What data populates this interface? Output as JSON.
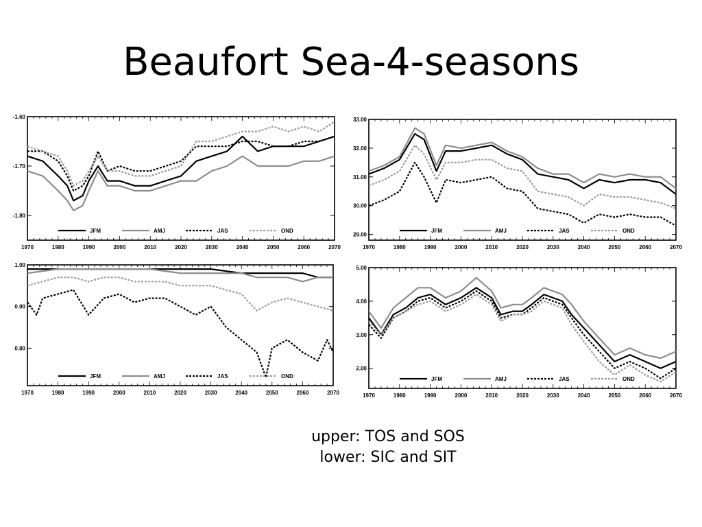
{
  "title": "Beaufort Sea-4-seasons",
  "caption": {
    "line1": "upper: TOS and SOS",
    "line2": "lower: SIC and SIT"
  },
  "series_styles": {
    "JFM": {
      "color": "#000000",
      "dash": ""
    },
    "AMJ": {
      "color": "#8c8c8c",
      "dash": ""
    },
    "JAS": {
      "color": "#000000",
      "dash": "3,2"
    },
    "OND": {
      "color": "#9a9a9a",
      "dash": "3,2"
    }
  },
  "chart_data": [
    {
      "type": "line",
      "xlim": [
        1970,
        2070
      ],
      "ylim": [
        -1.85,
        -1.6
      ],
      "yticks": [
        -1.6,
        -1.7,
        -1.8
      ],
      "ytick_labels": [
        "-1.60",
        "-1.70",
        "-1.80"
      ],
      "xticks": [
        1970,
        1980,
        1990,
        2000,
        2010,
        2020,
        2030,
        2040,
        2050,
        2060,
        2070
      ],
      "legend": [
        "JFM",
        "AMJ",
        "JAS",
        "OND"
      ],
      "series": [
        {
          "name": "JFM",
          "x": [
            1970,
            1975,
            1980,
            1983,
            1985,
            1988,
            1990,
            1993,
            1996,
            2000,
            2005,
            2010,
            2015,
            2020,
            2025,
            2030,
            2035,
            2040,
            2045,
            2050,
            2055,
            2060,
            2065,
            2070
          ],
          "y": [
            -1.68,
            -1.69,
            -1.72,
            -1.74,
            -1.77,
            -1.76,
            -1.73,
            -1.7,
            -1.73,
            -1.73,
            -1.74,
            -1.74,
            -1.73,
            -1.72,
            -1.69,
            -1.68,
            -1.67,
            -1.64,
            -1.67,
            -1.66,
            -1.66,
            -1.66,
            -1.65,
            -1.64
          ]
        },
        {
          "name": "AMJ",
          "x": [
            1970,
            1975,
            1980,
            1983,
            1985,
            1988,
            1990,
            1993,
            1996,
            2000,
            2005,
            2010,
            2015,
            2020,
            2025,
            2030,
            2035,
            2040,
            2045,
            2050,
            2055,
            2060,
            2065,
            2070
          ],
          "y": [
            -1.71,
            -1.72,
            -1.75,
            -1.77,
            -1.79,
            -1.78,
            -1.75,
            -1.71,
            -1.74,
            -1.74,
            -1.75,
            -1.75,
            -1.74,
            -1.73,
            -1.73,
            -1.71,
            -1.7,
            -1.68,
            -1.7,
            -1.7,
            -1.7,
            -1.69,
            -1.69,
            -1.68
          ]
        },
        {
          "name": "JAS",
          "x": [
            1970,
            1975,
            1980,
            1983,
            1985,
            1988,
            1990,
            1993,
            1996,
            2000,
            2005,
            2010,
            2015,
            2020,
            2025,
            2030,
            2035,
            2040,
            2045,
            2050,
            2055,
            2060,
            2065,
            2070
          ],
          "y": [
            -1.67,
            -1.67,
            -1.69,
            -1.72,
            -1.75,
            -1.74,
            -1.72,
            -1.67,
            -1.71,
            -1.7,
            -1.71,
            -1.71,
            -1.7,
            -1.69,
            -1.66,
            -1.66,
            -1.66,
            -1.65,
            -1.65,
            -1.66,
            -1.66,
            -1.65,
            -1.65,
            -1.64
          ]
        },
        {
          "name": "OND",
          "x": [
            1970,
            1975,
            1980,
            1983,
            1985,
            1988,
            1990,
            1993,
            1996,
            2000,
            2005,
            2010,
            2015,
            2020,
            2025,
            2030,
            2035,
            2040,
            2045,
            2050,
            2055,
            2060,
            2065,
            2070
          ],
          "y": [
            -1.66,
            -1.67,
            -1.68,
            -1.71,
            -1.74,
            -1.73,
            -1.71,
            -1.68,
            -1.71,
            -1.71,
            -1.72,
            -1.72,
            -1.71,
            -1.7,
            -1.65,
            -1.65,
            -1.64,
            -1.63,
            -1.63,
            -1.62,
            -1.63,
            -1.62,
            -1.63,
            -1.61
          ]
        }
      ]
    },
    {
      "type": "line",
      "xlim": [
        1970,
        2070
      ],
      "ylim": [
        28.8,
        33.0
      ],
      "yticks": [
        29.0,
        30.0,
        31.0,
        32.0,
        33.0
      ],
      "ytick_labels": [
        "29.00",
        "30.00",
        "31.00",
        "32.00",
        "33.00"
      ],
      "xticks": [
        1970,
        1980,
        1990,
        2000,
        2010,
        2020,
        2030,
        2040,
        2050,
        2060,
        2070
      ],
      "legend": [
        "JFM",
        "AMJ",
        "JAS",
        "OND"
      ],
      "series": [
        {
          "name": "JFM",
          "x": [
            1970,
            1975,
            1980,
            1985,
            1988,
            1992,
            1995,
            2000,
            2005,
            2010,
            2015,
            2020,
            2025,
            2030,
            2035,
            2040,
            2045,
            2050,
            2055,
            2060,
            2065,
            2070
          ],
          "y": [
            31.1,
            31.3,
            31.6,
            32.5,
            32.3,
            31.2,
            31.9,
            31.9,
            32.0,
            32.1,
            31.8,
            31.6,
            31.1,
            31.0,
            30.9,
            30.6,
            30.9,
            30.8,
            30.9,
            30.9,
            30.8,
            30.4
          ]
        },
        {
          "name": "AMJ",
          "x": [
            1970,
            1975,
            1980,
            1985,
            1988,
            1992,
            1995,
            2000,
            2005,
            2010,
            2015,
            2020,
            2025,
            2030,
            2035,
            2040,
            2045,
            2050,
            2055,
            2060,
            2065,
            2070
          ],
          "y": [
            31.2,
            31.4,
            31.7,
            32.7,
            32.5,
            31.4,
            32.1,
            32.0,
            32.1,
            32.2,
            31.9,
            31.7,
            31.3,
            31.1,
            31.1,
            30.8,
            31.1,
            31.0,
            31.1,
            31.0,
            31.0,
            30.6
          ]
        },
        {
          "name": "JAS",
          "x": [
            1970,
            1975,
            1980,
            1985,
            1988,
            1992,
            1995,
            2000,
            2005,
            2010,
            2015,
            2020,
            2025,
            2030,
            2035,
            2040,
            2045,
            2050,
            2055,
            2060,
            2065,
            2070
          ],
          "y": [
            30.0,
            30.2,
            30.5,
            31.5,
            31.0,
            30.1,
            30.9,
            30.8,
            30.9,
            31.0,
            30.6,
            30.5,
            29.9,
            29.8,
            29.7,
            29.4,
            29.7,
            29.6,
            29.7,
            29.6,
            29.6,
            29.3
          ]
        },
        {
          "name": "OND",
          "x": [
            1970,
            1975,
            1980,
            1985,
            1988,
            1992,
            1995,
            2000,
            2005,
            2010,
            2015,
            2020,
            2025,
            2030,
            2035,
            2040,
            2045,
            2050,
            2055,
            2060,
            2065,
            2070
          ],
          "y": [
            30.7,
            30.9,
            31.2,
            32.1,
            31.8,
            30.9,
            31.5,
            31.5,
            31.6,
            31.6,
            31.3,
            31.2,
            30.5,
            30.4,
            30.3,
            30.0,
            30.4,
            30.3,
            30.3,
            30.2,
            30.1,
            29.9
          ]
        }
      ]
    },
    {
      "type": "line",
      "xlim": [
        1970,
        2070
      ],
      "ylim": [
        0.71,
        1.0
      ],
      "yticks": [
        0.8,
        0.9,
        1.0
      ],
      "ytick_labels": [
        "0.80",
        "0.90",
        "1.00"
      ],
      "xticks": [
        1970,
        1980,
        1990,
        2000,
        2010,
        2020,
        2030,
        2040,
        2050,
        2060,
        2070
      ],
      "legend": [
        "JFM",
        "AMJ",
        "JAS",
        "OND"
      ],
      "series": [
        {
          "name": "JFM",
          "x": [
            1970,
            1980,
            1990,
            2000,
            2010,
            2020,
            2030,
            2040,
            2045,
            2050,
            2055,
            2060,
            2065,
            2070
          ],
          "y": [
            0.99,
            0.99,
            0.99,
            0.99,
            0.99,
            0.99,
            0.99,
            0.98,
            0.98,
            0.98,
            0.98,
            0.98,
            0.97,
            0.97
          ]
        },
        {
          "name": "AMJ",
          "x": [
            1970,
            1980,
            1990,
            2000,
            2010,
            2020,
            2030,
            2040,
            2045,
            2050,
            2055,
            2060,
            2065,
            2070
          ],
          "y": [
            0.98,
            0.99,
            0.99,
            0.99,
            0.99,
            0.98,
            0.98,
            0.98,
            0.97,
            0.97,
            0.97,
            0.96,
            0.97,
            0.97
          ]
        },
        {
          "name": "JAS",
          "x": [
            1970,
            1973,
            1975,
            1980,
            1985,
            1990,
            1995,
            2000,
            2005,
            2010,
            2015,
            2020,
            2025,
            2030,
            2035,
            2040,
            2045,
            2048,
            2050,
            2055,
            2060,
            2065,
            2068,
            2070
          ],
          "y": [
            0.91,
            0.88,
            0.92,
            0.93,
            0.94,
            0.88,
            0.92,
            0.93,
            0.91,
            0.92,
            0.92,
            0.9,
            0.88,
            0.9,
            0.85,
            0.82,
            0.79,
            0.73,
            0.8,
            0.82,
            0.79,
            0.77,
            0.82,
            0.79
          ]
        },
        {
          "name": "OND",
          "x": [
            1970,
            1975,
            1980,
            1985,
            1990,
            1995,
            2000,
            2005,
            2010,
            2015,
            2020,
            2025,
            2030,
            2035,
            2040,
            2045,
            2050,
            2055,
            2060,
            2065,
            2070
          ],
          "y": [
            0.95,
            0.96,
            0.97,
            0.97,
            0.96,
            0.97,
            0.97,
            0.96,
            0.96,
            0.96,
            0.95,
            0.95,
            0.95,
            0.94,
            0.93,
            0.89,
            0.91,
            0.92,
            0.91,
            0.9,
            0.89
          ]
        }
      ]
    },
    {
      "type": "line",
      "xlim": [
        1970,
        2070
      ],
      "ylim": [
        1.4,
        5.0
      ],
      "yticks": [
        2.0,
        3.0,
        4.0,
        5.0
      ],
      "ytick_labels": [
        "2.00",
        "3.00",
        "4.00",
        "5.00"
      ],
      "xticks": [
        1970,
        1980,
        1990,
        2000,
        2010,
        2020,
        2030,
        2040,
        2050,
        2060,
        2070
      ],
      "legend": [
        "JFM",
        "AMJ",
        "JAS",
        "OND"
      ],
      "series": [
        {
          "name": "JFM",
          "x": [
            1970,
            1974,
            1978,
            1982,
            1986,
            1990,
            1995,
            2000,
            2005,
            2010,
            2013,
            2017,
            2020,
            2023,
            2027,
            2030,
            2033,
            2036,
            2040,
            2045,
            2050,
            2055,
            2060,
            2065,
            2070
          ],
          "y": [
            3.5,
            3.0,
            3.6,
            3.8,
            4.1,
            4.2,
            3.9,
            4.1,
            4.4,
            4.1,
            3.6,
            3.7,
            3.7,
            3.9,
            4.2,
            4.1,
            4.0,
            3.6,
            3.2,
            2.7,
            2.2,
            2.4,
            2.2,
            2.0,
            2.2
          ]
        },
        {
          "name": "AMJ",
          "x": [
            1970,
            1974,
            1978,
            1982,
            1986,
            1990,
            1995,
            2000,
            2005,
            2010,
            2013,
            2017,
            2020,
            2023,
            2027,
            2030,
            2033,
            2036,
            2040,
            2045,
            2050,
            2055,
            2060,
            2065,
            2070
          ],
          "y": [
            3.7,
            3.2,
            3.8,
            4.1,
            4.4,
            4.4,
            4.1,
            4.3,
            4.7,
            4.3,
            3.8,
            3.9,
            3.9,
            4.1,
            4.4,
            4.3,
            4.2,
            3.9,
            3.4,
            2.9,
            2.4,
            2.6,
            2.4,
            2.3,
            2.5
          ]
        },
        {
          "name": "JAS",
          "x": [
            1970,
            1974,
            1978,
            1982,
            1986,
            1990,
            1995,
            2000,
            2005,
            2010,
            2013,
            2017,
            2020,
            2023,
            2027,
            2030,
            2033,
            2036,
            2040,
            2045,
            2050,
            2055,
            2060,
            2065,
            2070
          ],
          "y": [
            3.3,
            2.9,
            3.5,
            3.7,
            4.0,
            4.1,
            3.8,
            4.0,
            4.3,
            4.0,
            3.5,
            3.6,
            3.6,
            3.8,
            4.1,
            4.0,
            3.9,
            3.5,
            3.0,
            2.5,
            2.0,
            2.2,
            2.0,
            1.7,
            2.0
          ]
        },
        {
          "name": "OND",
          "x": [
            1970,
            1974,
            1978,
            1982,
            1986,
            1990,
            1995,
            2000,
            2005,
            2010,
            2013,
            2017,
            2020,
            2023,
            2027,
            2030,
            2033,
            2036,
            2040,
            2045,
            2050,
            2055,
            2060,
            2065,
            2070
          ],
          "y": [
            3.4,
            3.0,
            3.5,
            3.7,
            3.9,
            4.0,
            3.7,
            3.9,
            4.2,
            3.9,
            3.4,
            3.6,
            3.6,
            3.7,
            4.0,
            3.9,
            3.8,
            3.3,
            2.8,
            2.2,
            1.8,
            2.1,
            1.8,
            1.6,
            1.9
          ]
        }
      ]
    }
  ]
}
